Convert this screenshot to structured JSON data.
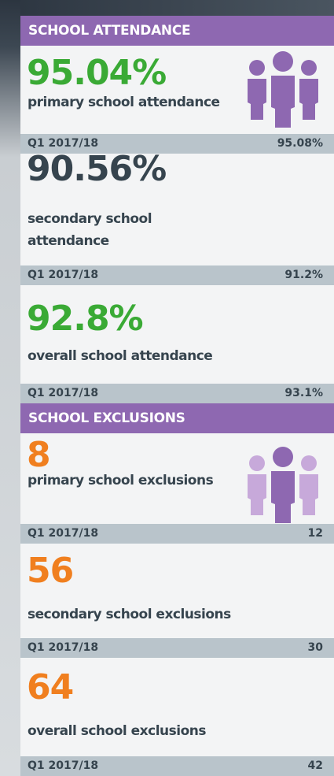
{
  "sections": [
    {
      "title": "SCHOOL ATTENDANCE",
      "items": [
        {
          "value": "95.04%",
          "label": "primary school attendance",
          "period": "Q1 2017/18",
          "previous": "95.08%",
          "color": "#3aaa35"
        },
        {
          "value": "90.56%",
          "label": "secondary school attendance",
          "period": "Q1 2017/18",
          "previous": "91.2%",
          "color": "#36444e"
        },
        {
          "value": "92.8%",
          "label": "overall school attendance",
          "period": "Q1 2017/18",
          "previous": "93.1%",
          "color": "#3aaa35"
        }
      ]
    },
    {
      "title": "SCHOOL EXCLUSIONS",
      "items": [
        {
          "value": "8",
          "label": "primary school exclusions",
          "period": "Q1 2017/18",
          "previous": "12",
          "color": "#f07f1f"
        },
        {
          "value": "56",
          "label": "secondary school exclusions",
          "period": "Q1 2017/18",
          "previous": "30",
          "color": "#f07f1f"
        },
        {
          "value": "64",
          "label": "overall school exclusions",
          "period": "Q1 2017/18",
          "previous": "42",
          "color": "#f07f1f"
        }
      ]
    }
  ]
}
